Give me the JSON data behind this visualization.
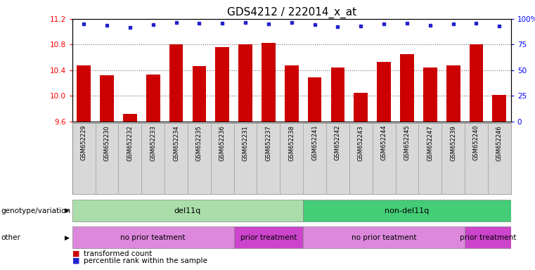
{
  "title": "GDS4212 / 222014_x_at",
  "samples": [
    "GSM652229",
    "GSM652230",
    "GSM652232",
    "GSM652233",
    "GSM652234",
    "GSM652235",
    "GSM652236",
    "GSM652231",
    "GSM652237",
    "GSM652238",
    "GSM652241",
    "GSM652242",
    "GSM652243",
    "GSM652244",
    "GSM652245",
    "GSM652247",
    "GSM652239",
    "GSM652240",
    "GSM652246"
  ],
  "bar_values": [
    10.47,
    10.32,
    9.72,
    10.33,
    10.8,
    10.46,
    10.76,
    10.8,
    10.83,
    10.47,
    10.29,
    10.44,
    10.05,
    10.53,
    10.65,
    10.44,
    10.48,
    10.8,
    10.01
  ],
  "dot_values": [
    11.12,
    11.1,
    11.07,
    11.11,
    11.14,
    11.13,
    11.13,
    11.14,
    11.12,
    11.14,
    11.11,
    11.08,
    11.09,
    11.12,
    11.13,
    11.1,
    11.12,
    11.13,
    11.09
  ],
  "ylim_left": [
    9.6,
    11.2
  ],
  "ylim_right": [
    0,
    100
  ],
  "yticks_left": [
    9.6,
    10.0,
    10.4,
    10.8,
    11.2
  ],
  "yticks_right": [
    0,
    25,
    50,
    75,
    100
  ],
  "bar_color": "#cc0000",
  "dot_color": "#2222cc",
  "bar_width": 0.6,
  "genotype_groups": [
    {
      "label": "del11q",
      "start": 0,
      "end": 10,
      "color": "#aaddaa"
    },
    {
      "label": "non-del11q",
      "start": 10,
      "end": 19,
      "color": "#44cc77"
    }
  ],
  "other_groups": [
    {
      "label": "no prior teatment",
      "start": 0,
      "end": 7,
      "color": "#dd88dd"
    },
    {
      "label": "prior treatment",
      "start": 7,
      "end": 10,
      "color": "#cc44cc"
    },
    {
      "label": "no prior teatment",
      "start": 10,
      "end": 17,
      "color": "#dd88dd"
    },
    {
      "label": "prior treatment",
      "start": 17,
      "end": 19,
      "color": "#cc44cc"
    }
  ],
  "legend_items": [
    {
      "label": "transformed count",
      "color": "#cc0000"
    },
    {
      "label": "percentile rank within the sample",
      "color": "#2222cc"
    }
  ],
  "title_fontsize": 11,
  "tick_fontsize": 7.5,
  "annotation_label_genotype": "genotype/variation",
  "annotation_label_other": "other",
  "bg_color": "#ffffff"
}
